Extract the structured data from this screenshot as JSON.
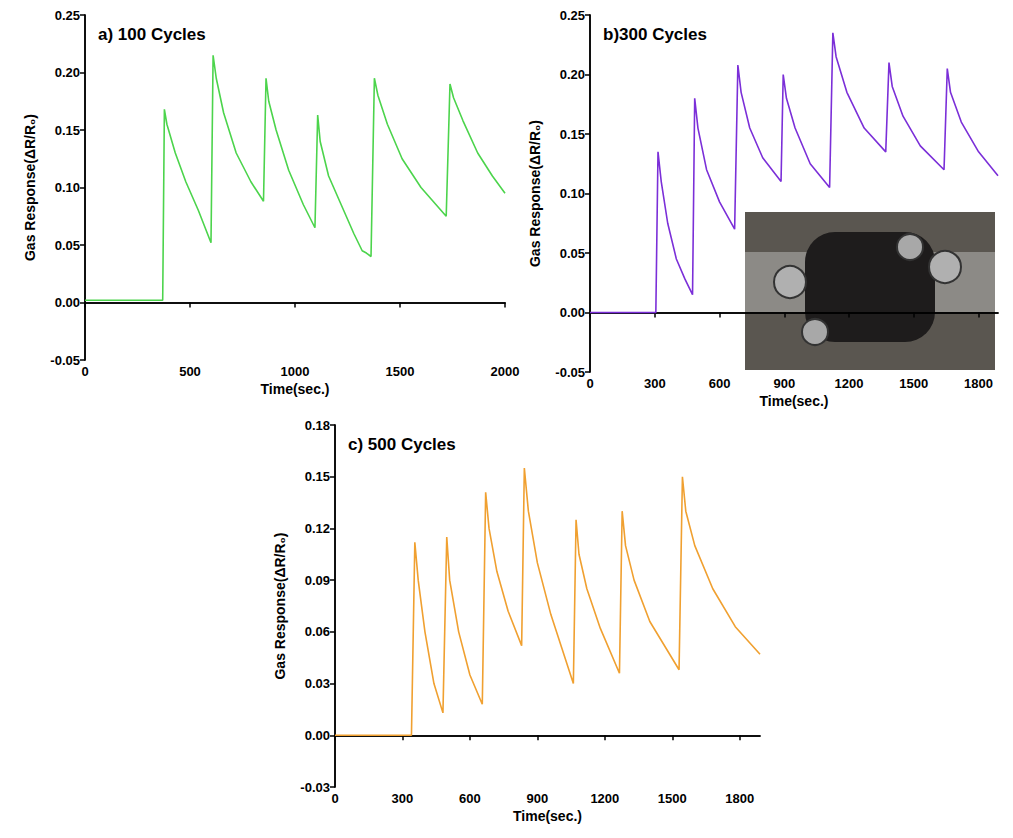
{
  "chart_data": [
    {
      "type": "line",
      "title": "a) 100 Cycles",
      "xlabel": "Time(sec.)",
      "ylabel": "Gas Response(ΔR/R₀)",
      "color": "#4cd44c",
      "grid": false,
      "xlim": [
        0,
        2000
      ],
      "xticks": [
        0,
        500,
        1000,
        1500,
        2000
      ],
      "ylim": [
        -0.05,
        0.25
      ],
      "yticks": [
        -0.05,
        {
          "value": 0,
          "label": "0.00"
        },
        0.05,
        {
          "value": 0.1,
          "label": "0.10"
        },
        0.15,
        {
          "value": 0.2,
          "label": "0.20"
        },
        0.25
      ],
      "x": [
        0,
        370,
        378,
        390,
        430,
        480,
        540,
        600,
        610,
        625,
        660,
        720,
        790,
        850,
        862,
        875,
        910,
        970,
        1040,
        1095,
        1108,
        1120,
        1160,
        1220,
        1280,
        1320,
        1340,
        1362,
        1378,
        1395,
        1440,
        1510,
        1600,
        1720,
        1738,
        1755,
        1800,
        1870,
        1940,
        2000
      ],
      "values": [
        0.002,
        0.002,
        0.168,
        0.155,
        0.13,
        0.105,
        0.08,
        0.052,
        0.215,
        0.195,
        0.165,
        0.13,
        0.105,
        0.088,
        0.195,
        0.175,
        0.15,
        0.115,
        0.085,
        0.065,
        0.163,
        0.14,
        0.11,
        0.085,
        0.06,
        0.045,
        0.043,
        0.04,
        0.195,
        0.18,
        0.155,
        0.125,
        0.1,
        0.075,
        0.19,
        0.178,
        0.158,
        0.13,
        0.11,
        0.095
      ]
    },
    {
      "type": "line",
      "title": "b)300 Cycles",
      "xlabel": "Time(sec.)",
      "ylabel": "Gas Response(ΔR/R₀)",
      "color": "#7b2fd8",
      "grid": false,
      "xlim": [
        0,
        1890
      ],
      "xticks": [
        0,
        300,
        600,
        900,
        1200,
        1500,
        1800
      ],
      "ylim": [
        -0.05,
        0.25
      ],
      "yticks": [
        -0.05,
        {
          "value": 0,
          "label": "0.00"
        },
        0.05,
        {
          "value": 0.1,
          "label": "0.10"
        },
        0.15,
        {
          "value": 0.2,
          "label": "0.20"
        },
        0.25
      ],
      "x": [
        0,
        305,
        315,
        330,
        360,
        400,
        440,
        475,
        485,
        500,
        540,
        600,
        670,
        685,
        700,
        740,
        800,
        885,
        895,
        910,
        950,
        1020,
        1110,
        1125,
        1140,
        1190,
        1270,
        1370,
        1385,
        1400,
        1450,
        1530,
        1640,
        1655,
        1670,
        1720,
        1800,
        1890
      ],
      "values": [
        0,
        0,
        0.135,
        0.11,
        0.075,
        0.045,
        0.028,
        0.015,
        0.18,
        0.155,
        0.12,
        0.093,
        0.07,
        0.208,
        0.185,
        0.155,
        0.13,
        0.11,
        0.2,
        0.18,
        0.155,
        0.125,
        0.105,
        0.235,
        0.215,
        0.185,
        0.155,
        0.135,
        0.21,
        0.19,
        0.165,
        0.14,
        0.12,
        0.205,
        0.185,
        0.16,
        0.135,
        0.115
      ]
    },
    {
      "type": "line",
      "title": "c) 500 Cycles",
      "xlabel": "Time(sec.)",
      "ylabel": "Gas Response(ΔR/R₀)",
      "color": "#f0a030",
      "grid": false,
      "xlim": [
        0,
        1890
      ],
      "xticks": [
        0,
        300,
        600,
        900,
        1200,
        1500,
        1800
      ],
      "ylim": [
        -0.03,
        0.18
      ],
      "yticks": [
        -0.03,
        {
          "value": 0,
          "label": "0.00"
        },
        0.03,
        0.06,
        0.09,
        0.12,
        0.15,
        0.18
      ],
      "x": [
        0,
        340,
        355,
        370,
        400,
        440,
        480,
        497,
        510,
        550,
        600,
        655,
        670,
        685,
        720,
        770,
        830,
        842,
        860,
        900,
        960,
        1010,
        1060,
        1072,
        1085,
        1120,
        1180,
        1265,
        1277,
        1292,
        1330,
        1400,
        1530,
        1545,
        1560,
        1600,
        1680,
        1780,
        1890
      ],
      "values": [
        0,
        0,
        0.112,
        0.09,
        0.06,
        0.03,
        0.013,
        0.115,
        0.09,
        0.06,
        0.035,
        0.018,
        0.141,
        0.12,
        0.095,
        0.072,
        0.052,
        0.155,
        0.13,
        0.1,
        0.07,
        0.05,
        0.03,
        0.125,
        0.105,
        0.085,
        0.062,
        0.036,
        0.13,
        0.11,
        0.09,
        0.066,
        0.038,
        0.15,
        0.13,
        0.11,
        0.085,
        0.063,
        0.047
      ]
    }
  ]
}
